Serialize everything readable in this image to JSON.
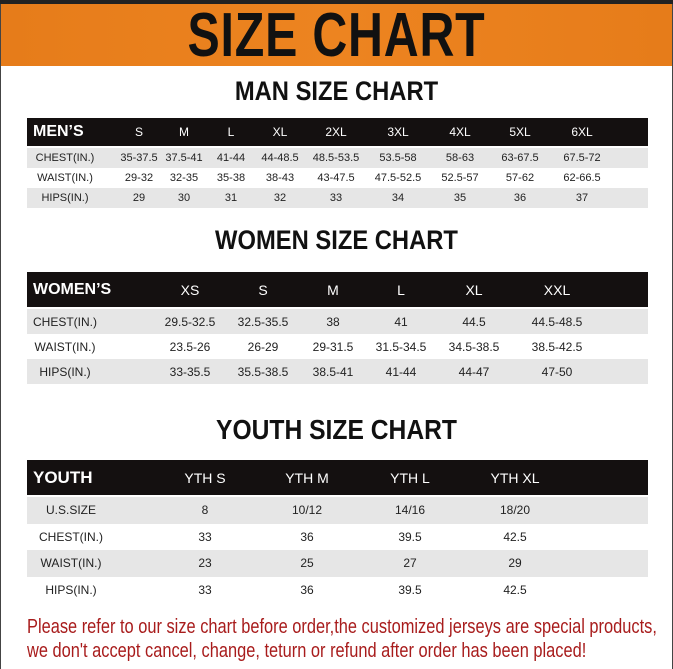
{
  "banner": {
    "title": "SIZE CHART",
    "color": "#e67c1a"
  },
  "men": {
    "title": "MAN SIZE CHART",
    "header": [
      "MEN’S",
      "S",
      "M",
      "L",
      "XL",
      "2XL",
      "3XL",
      "4XL",
      "5XL",
      "6XL"
    ],
    "rows": [
      [
        "CHEST(IN.)",
        "35-37.5",
        "37.5-41",
        "41-44",
        "44-48.5",
        "48.5-53.5",
        "53.5-58",
        "58-63",
        "63-67.5",
        "67.5-72"
      ],
      [
        "WAIST(IN.)",
        "29-32",
        "32-35",
        "35-38",
        "38-43",
        "43-47.5",
        "47.5-52.5",
        "52.5-57",
        "57-62",
        "62-66.5"
      ],
      [
        "HIPS(IN.)",
        "29",
        "30",
        "31",
        "32",
        "33",
        "34",
        "35",
        "36",
        "37"
      ]
    ]
  },
  "women": {
    "title": "WOMEN SIZE CHART",
    "header": [
      "WOMEN’S",
      "XS",
      "S",
      "M",
      "L",
      "XL",
      "XXL"
    ],
    "rows": [
      [
        "CHEST(IN.)",
        "29.5-32.5",
        "32.5-35.5",
        "38",
        "41",
        "44.5",
        "44.5-48.5"
      ],
      [
        "WAIST(IN.)",
        "23.5-26",
        "26-29",
        "29-31.5",
        "31.5-34.5",
        "34.5-38.5",
        "38.5-42.5"
      ],
      [
        "HIPS(IN.)",
        "33-35.5",
        "35.5-38.5",
        "38.5-41",
        "41-44",
        "44-47",
        "47-50"
      ]
    ]
  },
  "youth": {
    "title": "YOUTH SIZE CHART",
    "header": [
      "YOUTH",
      "YTH S",
      "YTH M",
      "YTH L",
      "YTH XL"
    ],
    "rows": [
      [
        "U.S.SIZE",
        "8",
        "10/12",
        "14/16",
        "18/20"
      ],
      [
        "CHEST(IN.)",
        "33",
        "36",
        "39.5",
        "42.5"
      ],
      [
        "WAIST(IN.)",
        "23",
        "25",
        "27",
        "29"
      ],
      [
        "HIPS(IN.)",
        "33",
        "36",
        "39.5",
        "42.5"
      ]
    ]
  },
  "notice": {
    "line1": "Please refer to our size chart before order,the customized jerseys are special products,",
    "line2": "we don't accept cancel, change, teturn or refund after order has been placed!",
    "color": "#a81c1c"
  }
}
